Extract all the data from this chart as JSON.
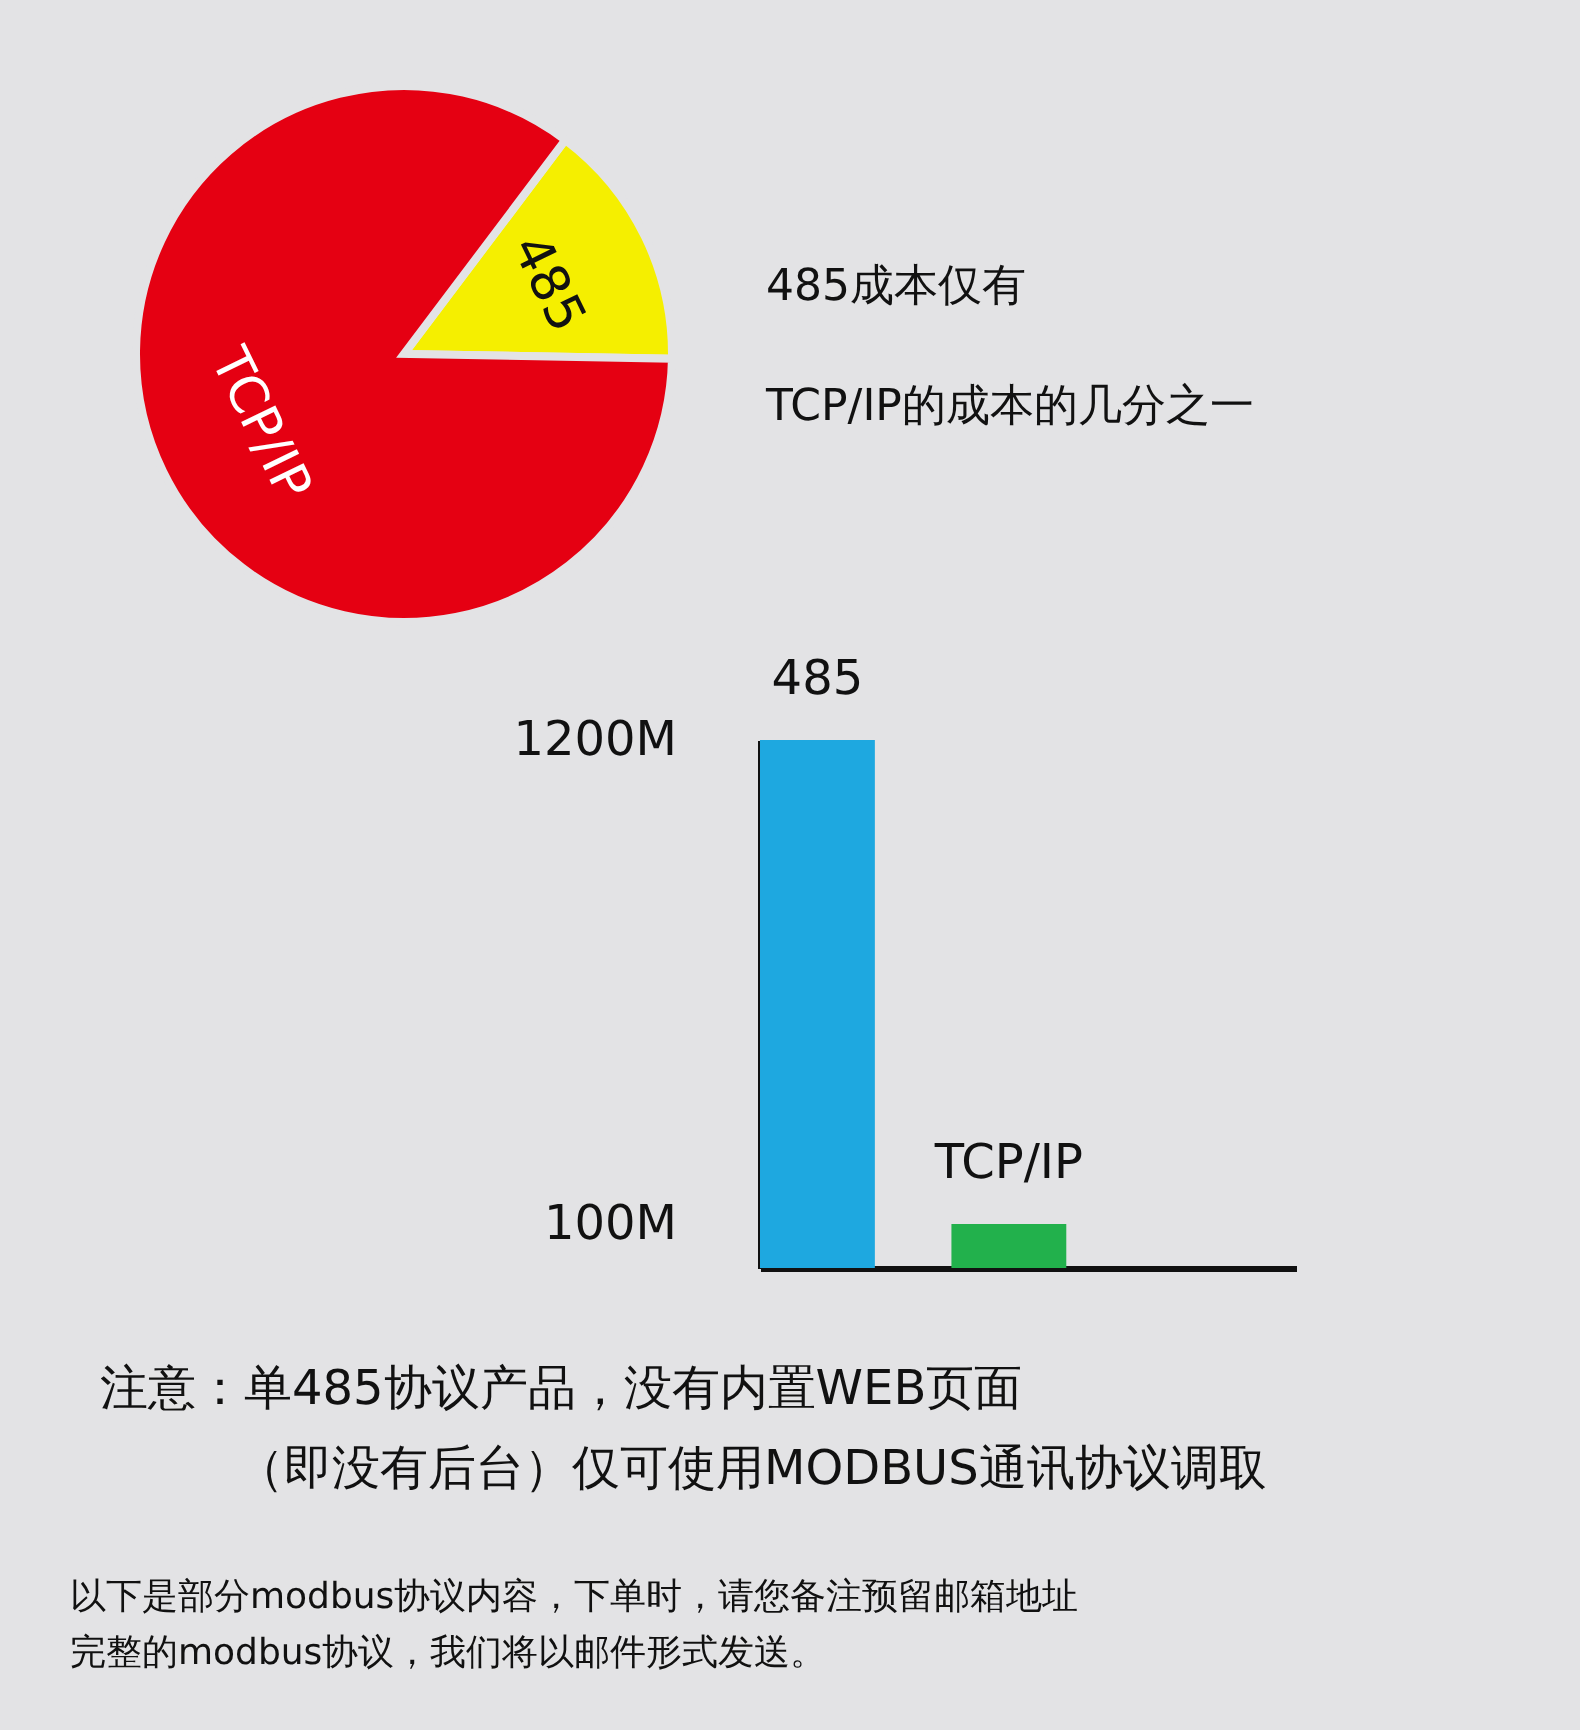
{
  "chart_data": [
    {
      "type": "pie",
      "categories": [
        "485",
        "TCP/IP"
      ],
      "values": [
        15,
        85
      ],
      "colors": [
        "#f5ef00",
        "#e50012"
      ],
      "legend": false,
      "annotations": [
        "485成本仅有",
        "TCP/IP的成本的几分之一"
      ]
    },
    {
      "type": "bar",
      "categories": [
        "485",
        "TCP/IP"
      ],
      "values": [
        1200,
        100
      ],
      "colors": [
        "#1ea8e0",
        "#22b14c"
      ],
      "ylim": [
        0,
        1200
      ],
      "yticks": [
        {
          "value": 1200,
          "label": "1200M"
        },
        {
          "value": 100,
          "label": "100M"
        }
      ],
      "grid": false,
      "legend": false,
      "annotations": [
        "注意：单485协议产品，没有内置WEB页面",
        "（即没有后台）仅可使用MODBUS通讯协议调取",
        "以下是部分modbus协议内容，下单时，请您备注预留邮箱地址",
        "完整的modbus协议，我们将以邮件形式发送。"
      ]
    }
  ]
}
